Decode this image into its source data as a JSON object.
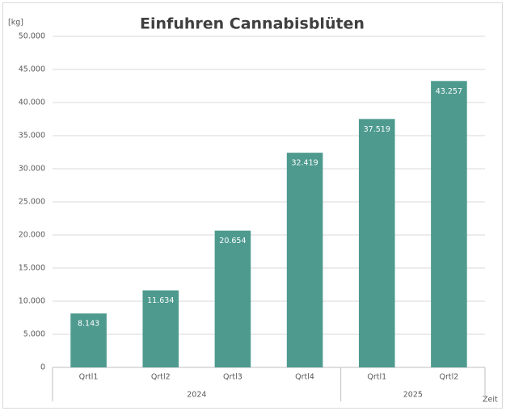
{
  "chart_data": {
    "type": "bar",
    "title": "Einfuhren Cannabisblüten",
    "y_label": "[kg]",
    "x_label": "Zeit",
    "categories": [
      "Qrtl1",
      "Qrtl2",
      "Qrtl3",
      "Qrtl4",
      "Qrtl1",
      "Qrtl2"
    ],
    "groups": [
      {
        "label": "2024",
        "size": 4
      },
      {
        "label": "2025",
        "size": 2
      }
    ],
    "values": [
      8143,
      11634,
      20654,
      32419,
      37519,
      43257
    ],
    "value_labels": [
      "8.143",
      "11.634",
      "20.654",
      "32.419",
      "37.519",
      "43.257"
    ],
    "color": "#4e9a8f",
    "ylim": [
      0,
      50000
    ],
    "yticks": [
      0,
      {
        "value": 5000,
        "label": "5.000"
      },
      {
        "value": 10000,
        "label": "10.000"
      },
      {
        "value": 15000,
        "label": "15.000"
      },
      {
        "value": 20000,
        "label": "20.000"
      },
      {
        "value": 25000,
        "label": "25.000"
      },
      {
        "value": 30000,
        "label": "30.000"
      },
      {
        "value": 35000,
        "label": "35.000"
      },
      {
        "value": 40000,
        "label": "40.000"
      },
      {
        "value": 45000,
        "label": "45.000"
      },
      {
        "value": 50000,
        "label": "50.000"
      }
    ],
    "grid": true
  }
}
